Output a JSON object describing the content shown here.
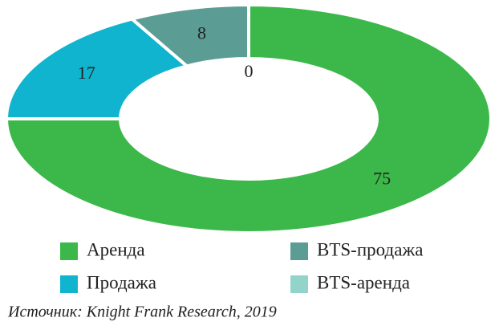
{
  "chart_data": {
    "type": "donut",
    "categories": [
      "Аренда",
      "Продажа",
      "BTS-продажа",
      "BTS-аренда"
    ],
    "values": [
      75,
      17,
      8,
      0
    ],
    "colors": [
      "#3cb84a",
      "#10b4cf",
      "#5b9c95",
      "#92d4ca"
    ],
    "source": "Источник: Knight Frank Research, 2019"
  }
}
